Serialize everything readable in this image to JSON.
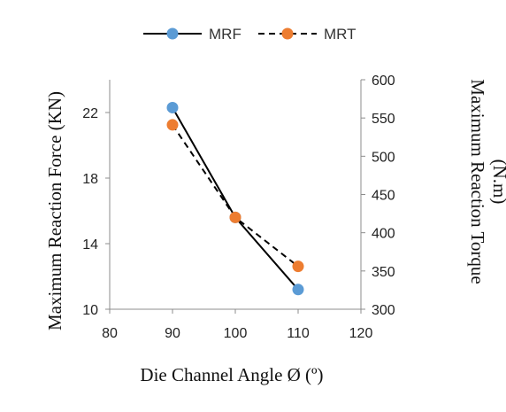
{
  "chart_data": {
    "type": "line",
    "xlabel": "Die Channel Angle Ø (º)",
    "ylabel": "Maximum Reaction Force (KN)",
    "y2label": [
      "Maximum Reaction Torque",
      "(N.m)"
    ],
    "xlim": [
      80,
      120
    ],
    "xticks": [
      80,
      90,
      100,
      110,
      120
    ],
    "ylim": [
      10,
      24
    ],
    "yticks": [
      10,
      14,
      18,
      22
    ],
    "y2lim": [
      300,
      600
    ],
    "y2ticks": [
      300,
      350,
      400,
      450,
      500,
      550,
      600
    ],
    "grid": false,
    "legend_position": "top",
    "series": [
      {
        "name": "MRF",
        "axis": "left",
        "x": [
          90,
          100,
          110
        ],
        "y": [
          22.3,
          15.6,
          11.2
        ],
        "line_color": "#000000",
        "line_style": "solid",
        "marker_color": "#5B9BD5"
      },
      {
        "name": "MRT",
        "axis": "right",
        "x": [
          90,
          100,
          110
        ],
        "y": [
          541,
          420,
          356
        ],
        "line_color": "#000000",
        "line_style": "dashed",
        "marker_color": "#ED7D31"
      }
    ]
  }
}
